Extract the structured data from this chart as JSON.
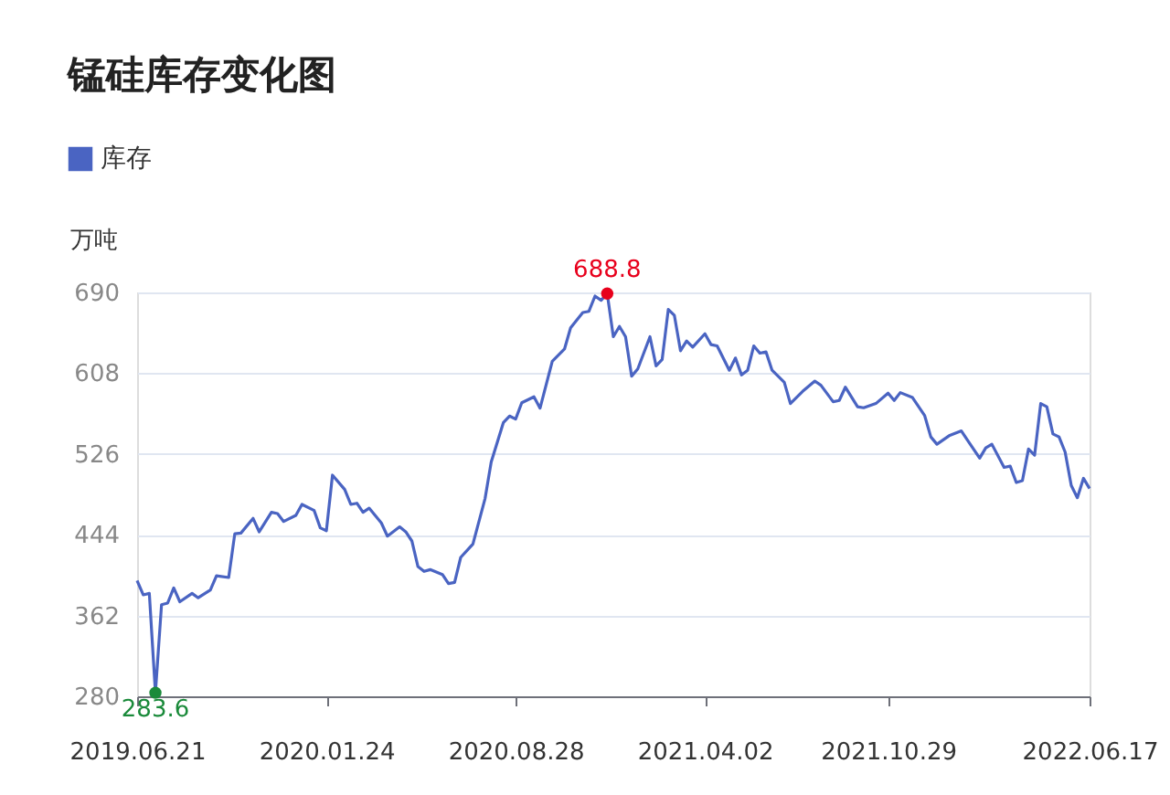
{
  "chart_data": {
    "type": "line",
    "title": "锰硅库存变化图",
    "ylabel": "万吨",
    "legend": "top left",
    "grid": "y",
    "marker": "none",
    "line_style": "solid",
    "ylim": [
      280,
      690
    ],
    "yticks": [
      280,
      362,
      444,
      526,
      608,
      690
    ],
    "xlim": [
      "2019-06-21",
      "2022-06-17"
    ],
    "xticks": [
      {
        "value": "2019-06-21",
        "label": "2019.06.21"
      },
      {
        "value": "2020-01-24",
        "label": "2020.01.24"
      },
      {
        "value": "2020-08-28",
        "label": "2020.08.28"
      },
      {
        "value": "2021-04-02",
        "label": "2021.04.02"
      },
      {
        "value": "2021-10-29",
        "label": "2021.10.29"
      },
      {
        "value": "2022-06-17",
        "label": "2022.06.17"
      }
    ],
    "annotations": [
      {
        "text": "688.8",
        "x": "2020-12-11",
        "y": 688.8
      },
      {
        "text": "283.6",
        "x": "2019-07-12",
        "y": 283.6
      }
    ],
    "series": [
      {
        "name": "库存",
        "color": "#4a64c2",
        "x": [
          "2019-06-21",
          "2019-06-28",
          "2019-07-05",
          "2019-07-12",
          "2019-07-19",
          "2019-07-26",
          "2019-08-02",
          "2019-08-09",
          "2019-08-23",
          "2019-08-30",
          "2019-09-13",
          "2019-09-20",
          "2019-10-04",
          "2019-10-11",
          "2019-10-18",
          "2019-11-01",
          "2019-11-08",
          "2019-11-22",
          "2019-11-29",
          "2019-12-06",
          "2019-12-20",
          "2019-12-27",
          "2020-01-10",
          "2020-01-17",
          "2020-01-24",
          "2020-01-31",
          "2020-02-14",
          "2020-02-21",
          "2020-02-28",
          "2020-03-06",
          "2020-03-13",
          "2020-03-27",
          "2020-04-03",
          "2020-04-17",
          "2020-04-24",
          "2020-05-01",
          "2020-05-08",
          "2020-05-15",
          "2020-05-22",
          "2020-06-05",
          "2020-06-12",
          "2020-06-19",
          "2020-06-26",
          "2020-07-10",
          "2020-07-24",
          "2020-07-31",
          "2020-08-14",
          "2020-08-21",
          "2020-08-28",
          "2020-09-04",
          "2020-09-18",
          "2020-09-25",
          "2020-10-09",
          "2020-10-23",
          "2020-10-30",
          "2020-11-13",
          "2020-11-20",
          "2020-11-27",
          "2020-12-04",
          "2020-12-11",
          "2020-12-18",
          "2020-12-25",
          "2021-01-01",
          "2021-01-08",
          "2021-01-15",
          "2021-01-29",
          "2021-02-05",
          "2021-02-12",
          "2021-02-19",
          "2021-02-26",
          "2021-03-05",
          "2021-03-12",
          "2021-03-19",
          "2021-04-02",
          "2021-04-09",
          "2021-04-16",
          "2021-04-30",
          "2021-05-07",
          "2021-05-14",
          "2021-05-21",
          "2021-05-28",
          "2021-06-04",
          "2021-06-11",
          "2021-06-18",
          "2021-07-02",
          "2021-07-09",
          "2021-07-23",
          "2021-08-06",
          "2021-08-13",
          "2021-08-27",
          "2021-09-03",
          "2021-09-10",
          "2021-09-24",
          "2021-10-01",
          "2021-10-15",
          "2021-10-29",
          "2021-11-05",
          "2021-11-12",
          "2021-11-26",
          "2021-12-10",
          "2021-12-17",
          "2021-12-24",
          "2022-01-07",
          "2022-01-21",
          "2022-01-28",
          "2022-02-11",
          "2022-02-18",
          "2022-02-25",
          "2022-03-11",
          "2022-03-18",
          "2022-03-25",
          "2022-04-01",
          "2022-04-08",
          "2022-04-15",
          "2022-04-22",
          "2022-04-29",
          "2022-05-06",
          "2022-05-13",
          "2022-05-20",
          "2022-05-27",
          "2022-06-03",
          "2022-06-10",
          "2022-06-17"
        ],
        "values": [
          397.5,
          383,
          384.5,
          283.6,
          373,
          374.6,
          390,
          376,
          384.5,
          380,
          388,
          402.4,
          400.6,
          445,
          445.7,
          460.6,
          447,
          466.8,
          465.5,
          457.5,
          463.7,
          474.8,
          468.6,
          451,
          448,
          504.5,
          490,
          474.8,
          476,
          466.8,
          471,
          456,
          442.6,
          452,
          447,
          437.7,
          411.7,
          406.8,
          408.6,
          403.7,
          394.4,
          395.6,
          421,
          434.6,
          481,
          518,
          558,
          564.5,
          561.4,
          578,
          584,
          572.5,
          620,
          632.5,
          654,
          669.6,
          670.8,
          686.3,
          682,
          688.8,
          645,
          655.5,
          645,
          605,
          612.3,
          645,
          615.4,
          622,
          672.7,
          666.6,
          630.8,
          640.7,
          634.5,
          648,
          637,
          635.7,
          611,
          623.4,
          606.2,
          611,
          635.7,
          628.3,
          629.6,
          611,
          598.8,
          577.2,
          589.5,
          600,
          595.7,
          579,
          580.3,
          593.8,
          574,
          572.9,
          577.2,
          587.7,
          580.3,
          588.3,
          583.3,
          564.8,
          543.3,
          535.9,
          544.5,
          549.4,
          540,
          521.7,
          532.2,
          535.9,
          512.4,
          513.6,
          497,
          498.9,
          531,
          524.8,
          577.2,
          574,
          546.4,
          543.3,
          527.9,
          494,
          481.6,
          501.3,
          490.9
        ]
      }
    ]
  }
}
